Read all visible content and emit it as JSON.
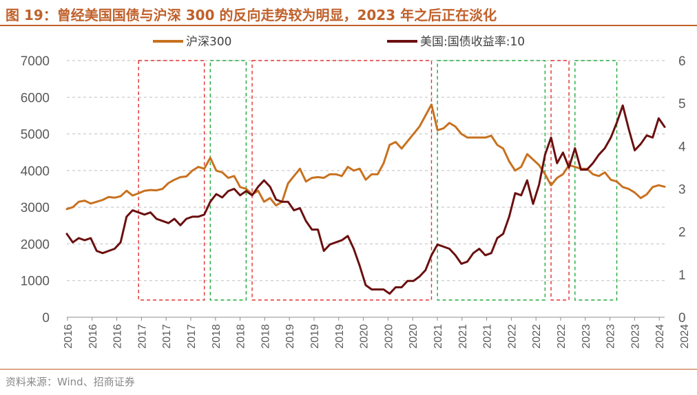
{
  "header": {
    "title": "图 19：曾经美国国债与沪深 300 的反向走势较为明显，2023 年之后正在淡化"
  },
  "footer": {
    "source": "资料来源：Wind、招商证券"
  },
  "chart_data": {
    "type": "line",
    "title": "",
    "grid": true,
    "legend_position": "top-center",
    "y_left": {
      "min": 0,
      "max": 7000,
      "ticks": [
        0,
        1000,
        2000,
        3000,
        4000,
        5000,
        6000,
        7000
      ]
    },
    "y_right": {
      "min": 0,
      "max": 6,
      "ticks": [
        0,
        1,
        2,
        3,
        4,
        5,
        6
      ]
    },
    "x_ticks": [
      "2016",
      "2016",
      "2016",
      "2017",
      "2017",
      "2017",
      "2018",
      "2018",
      "2018",
      "2019",
      "2019",
      "2019",
      "2020",
      "2020",
      "2020",
      "2021",
      "2021",
      "2021",
      "2022",
      "2022",
      "2022",
      "2023",
      "2023",
      "2023",
      "2024",
      "2024"
    ],
    "x_range": [
      "2016-01",
      "2024-05"
    ],
    "series": [
      {
        "name": "沪深300",
        "axis": "left",
        "color": "#c8711f",
        "points": [
          [
            "2016-01",
            2950
          ],
          [
            "2016-02",
            3000
          ],
          [
            "2016-03",
            3150
          ],
          [
            "2016-04",
            3180
          ],
          [
            "2016-05",
            3100
          ],
          [
            "2016-06",
            3150
          ],
          [
            "2016-07",
            3200
          ],
          [
            "2016-08",
            3280
          ],
          [
            "2016-09",
            3260
          ],
          [
            "2016-10",
            3300
          ],
          [
            "2016-11",
            3450
          ],
          [
            "2016-12",
            3320
          ],
          [
            "2017-01",
            3380
          ],
          [
            "2017-02",
            3450
          ],
          [
            "2017-03",
            3470
          ],
          [
            "2017-04",
            3460
          ],
          [
            "2017-05",
            3500
          ],
          [
            "2017-06",
            3660
          ],
          [
            "2017-07",
            3750
          ],
          [
            "2017-08",
            3820
          ],
          [
            "2017-09",
            3840
          ],
          [
            "2017-10",
            4000
          ],
          [
            "2017-11",
            4100
          ],
          [
            "2017-12",
            4050
          ],
          [
            "2018-01",
            4350
          ],
          [
            "2018-02",
            4000
          ],
          [
            "2018-03",
            3950
          ],
          [
            "2018-04",
            3800
          ],
          [
            "2018-05",
            3850
          ],
          [
            "2018-06",
            3550
          ],
          [
            "2018-07",
            3500
          ],
          [
            "2018-08",
            3350
          ],
          [
            "2018-09",
            3450
          ],
          [
            "2018-10",
            3150
          ],
          [
            "2018-11",
            3250
          ],
          [
            "2018-12",
            3050
          ],
          [
            "2019-01",
            3150
          ],
          [
            "2019-02",
            3650
          ],
          [
            "2019-03",
            3850
          ],
          [
            "2019-04",
            4050
          ],
          [
            "2019-05",
            3700
          ],
          [
            "2019-06",
            3800
          ],
          [
            "2019-07",
            3820
          ],
          [
            "2019-08",
            3800
          ],
          [
            "2019-09",
            3900
          ],
          [
            "2019-10",
            3900
          ],
          [
            "2019-11",
            3850
          ],
          [
            "2019-12",
            4100
          ],
          [
            "2020-01",
            4000
          ],
          [
            "2020-02",
            4050
          ],
          [
            "2020-03",
            3750
          ],
          [
            "2020-04",
            3900
          ],
          [
            "2020-05",
            3900
          ],
          [
            "2020-06",
            4200
          ],
          [
            "2020-07",
            4700
          ],
          [
            "2020-08",
            4780
          ],
          [
            "2020-09",
            4600
          ],
          [
            "2020-10",
            4800
          ],
          [
            "2020-11",
            5000
          ],
          [
            "2020-12",
            5200
          ],
          [
            "2021-01",
            5500
          ],
          [
            "2021-02",
            5800
          ],
          [
            "2021-03",
            5100
          ],
          [
            "2021-04",
            5150
          ],
          [
            "2021-05",
            5300
          ],
          [
            "2021-06",
            5200
          ],
          [
            "2021-07",
            5000
          ],
          [
            "2021-08",
            4900
          ],
          [
            "2021-09",
            4900
          ],
          [
            "2021-10",
            4900
          ],
          [
            "2021-11",
            4900
          ],
          [
            "2021-12",
            4950
          ],
          [
            "2022-01",
            4700
          ],
          [
            "2022-02",
            4600
          ],
          [
            "2022-03",
            4250
          ],
          [
            "2022-04",
            4000
          ],
          [
            "2022-05",
            4100
          ],
          [
            "2022-06",
            4450
          ],
          [
            "2022-07",
            4300
          ],
          [
            "2022-08",
            4150
          ],
          [
            "2022-09",
            3900
          ],
          [
            "2022-10",
            3600
          ],
          [
            "2022-11",
            3800
          ],
          [
            "2022-12",
            3900
          ],
          [
            "2023-01",
            4150
          ],
          [
            "2023-02",
            4100
          ],
          [
            "2023-03",
            4050
          ],
          [
            "2023-04",
            4050
          ],
          [
            "2023-05",
            3900
          ],
          [
            "2023-06",
            3850
          ],
          [
            "2023-07",
            3950
          ],
          [
            "2023-08",
            3750
          ],
          [
            "2023-09",
            3700
          ],
          [
            "2023-10",
            3550
          ],
          [
            "2023-11",
            3500
          ],
          [
            "2023-12",
            3400
          ],
          [
            "2024-01",
            3250
          ],
          [
            "2024-02",
            3350
          ],
          [
            "2024-03",
            3550
          ],
          [
            "2024-04",
            3600
          ],
          [
            "2024-05",
            3560
          ]
        ]
      },
      {
        "name": "美国:国债收益率:10",
        "axis": "right",
        "color": "#6b0f0f",
        "points": [
          [
            "2016-01",
            1.95
          ],
          [
            "2016-02",
            1.75
          ],
          [
            "2016-03",
            1.85
          ],
          [
            "2016-04",
            1.8
          ],
          [
            "2016-05",
            1.85
          ],
          [
            "2016-06",
            1.55
          ],
          [
            "2016-07",
            1.5
          ],
          [
            "2016-08",
            1.55
          ],
          [
            "2016-09",
            1.6
          ],
          [
            "2016-10",
            1.75
          ],
          [
            "2016-11",
            2.35
          ],
          [
            "2016-12",
            2.5
          ],
          [
            "2017-01",
            2.45
          ],
          [
            "2017-02",
            2.4
          ],
          [
            "2017-03",
            2.45
          ],
          [
            "2017-04",
            2.3
          ],
          [
            "2017-05",
            2.25
          ],
          [
            "2017-06",
            2.2
          ],
          [
            "2017-07",
            2.3
          ],
          [
            "2017-08",
            2.15
          ],
          [
            "2017-09",
            2.3
          ],
          [
            "2017-10",
            2.35
          ],
          [
            "2017-11",
            2.35
          ],
          [
            "2017-12",
            2.4
          ],
          [
            "2018-01",
            2.7
          ],
          [
            "2018-02",
            2.88
          ],
          [
            "2018-03",
            2.8
          ],
          [
            "2018-04",
            2.95
          ],
          [
            "2018-05",
            3.0
          ],
          [
            "2018-06",
            2.85
          ],
          [
            "2018-07",
            2.95
          ],
          [
            "2018-08",
            2.85
          ],
          [
            "2018-09",
            3.05
          ],
          [
            "2018-10",
            3.2
          ],
          [
            "2018-11",
            3.05
          ],
          [
            "2018-12",
            2.75
          ],
          [
            "2019-01",
            2.7
          ],
          [
            "2019-02",
            2.7
          ],
          [
            "2019-03",
            2.5
          ],
          [
            "2019-04",
            2.55
          ],
          [
            "2019-05",
            2.25
          ],
          [
            "2019-06",
            2.05
          ],
          [
            "2019-07",
            2.05
          ],
          [
            "2019-08",
            1.55
          ],
          [
            "2019-09",
            1.7
          ],
          [
            "2019-10",
            1.75
          ],
          [
            "2019-11",
            1.8
          ],
          [
            "2019-12",
            1.9
          ],
          [
            "2020-01",
            1.6
          ],
          [
            "2020-02",
            1.2
          ],
          [
            "2020-03",
            0.75
          ],
          [
            "2020-04",
            0.65
          ],
          [
            "2020-05",
            0.65
          ],
          [
            "2020-06",
            0.65
          ],
          [
            "2020-07",
            0.55
          ],
          [
            "2020-08",
            0.7
          ],
          [
            "2020-09",
            0.7
          ],
          [
            "2020-10",
            0.85
          ],
          [
            "2020-11",
            0.85
          ],
          [
            "2020-12",
            0.95
          ],
          [
            "2021-01",
            1.1
          ],
          [
            "2021-02",
            1.45
          ],
          [
            "2021-03",
            1.7
          ],
          [
            "2021-04",
            1.65
          ],
          [
            "2021-05",
            1.6
          ],
          [
            "2021-06",
            1.45
          ],
          [
            "2021-07",
            1.25
          ],
          [
            "2021-08",
            1.3
          ],
          [
            "2021-09",
            1.5
          ],
          [
            "2021-10",
            1.6
          ],
          [
            "2021-11",
            1.45
          ],
          [
            "2021-12",
            1.5
          ],
          [
            "2022-01",
            1.85
          ],
          [
            "2022-02",
            1.95
          ],
          [
            "2022-03",
            2.35
          ],
          [
            "2022-04",
            2.9
          ],
          [
            "2022-05",
            2.85
          ],
          [
            "2022-06",
            3.2
          ],
          [
            "2022-07",
            2.65
          ],
          [
            "2022-08",
            3.1
          ],
          [
            "2022-09",
            3.8
          ],
          [
            "2022-10",
            4.2
          ],
          [
            "2022-11",
            3.6
          ],
          [
            "2022-12",
            3.85
          ],
          [
            "2023-01",
            3.5
          ],
          [
            "2023-02",
            3.95
          ],
          [
            "2023-03",
            3.45
          ],
          [
            "2023-04",
            3.45
          ],
          [
            "2023-05",
            3.6
          ],
          [
            "2023-06",
            3.8
          ],
          [
            "2023-07",
            3.95
          ],
          [
            "2023-08",
            4.2
          ],
          [
            "2023-09",
            4.55
          ],
          [
            "2023-10",
            4.95
          ],
          [
            "2023-11",
            4.4
          ],
          [
            "2023-12",
            3.9
          ],
          [
            "2024-01",
            4.05
          ],
          [
            "2024-02",
            4.25
          ],
          [
            "2024-03",
            4.2
          ],
          [
            "2024-04",
            4.65
          ],
          [
            "2024-05",
            4.45
          ]
        ]
      }
    ],
    "periods": [
      {
        "start": "2017-01",
        "end": "2017-12",
        "color": "#e03030"
      },
      {
        "start": "2018-01",
        "end": "2018-07",
        "color": "#22a83a"
      },
      {
        "start": "2018-08",
        "end": "2021-02",
        "color": "#e03030"
      },
      {
        "start": "2021-03",
        "end": "2022-09",
        "color": "#22a83a"
      },
      {
        "start": "2022-10",
        "end": "2023-01",
        "color": "#e03030"
      },
      {
        "start": "2023-02",
        "end": "2023-09",
        "color": "#22a83a"
      }
    ]
  }
}
